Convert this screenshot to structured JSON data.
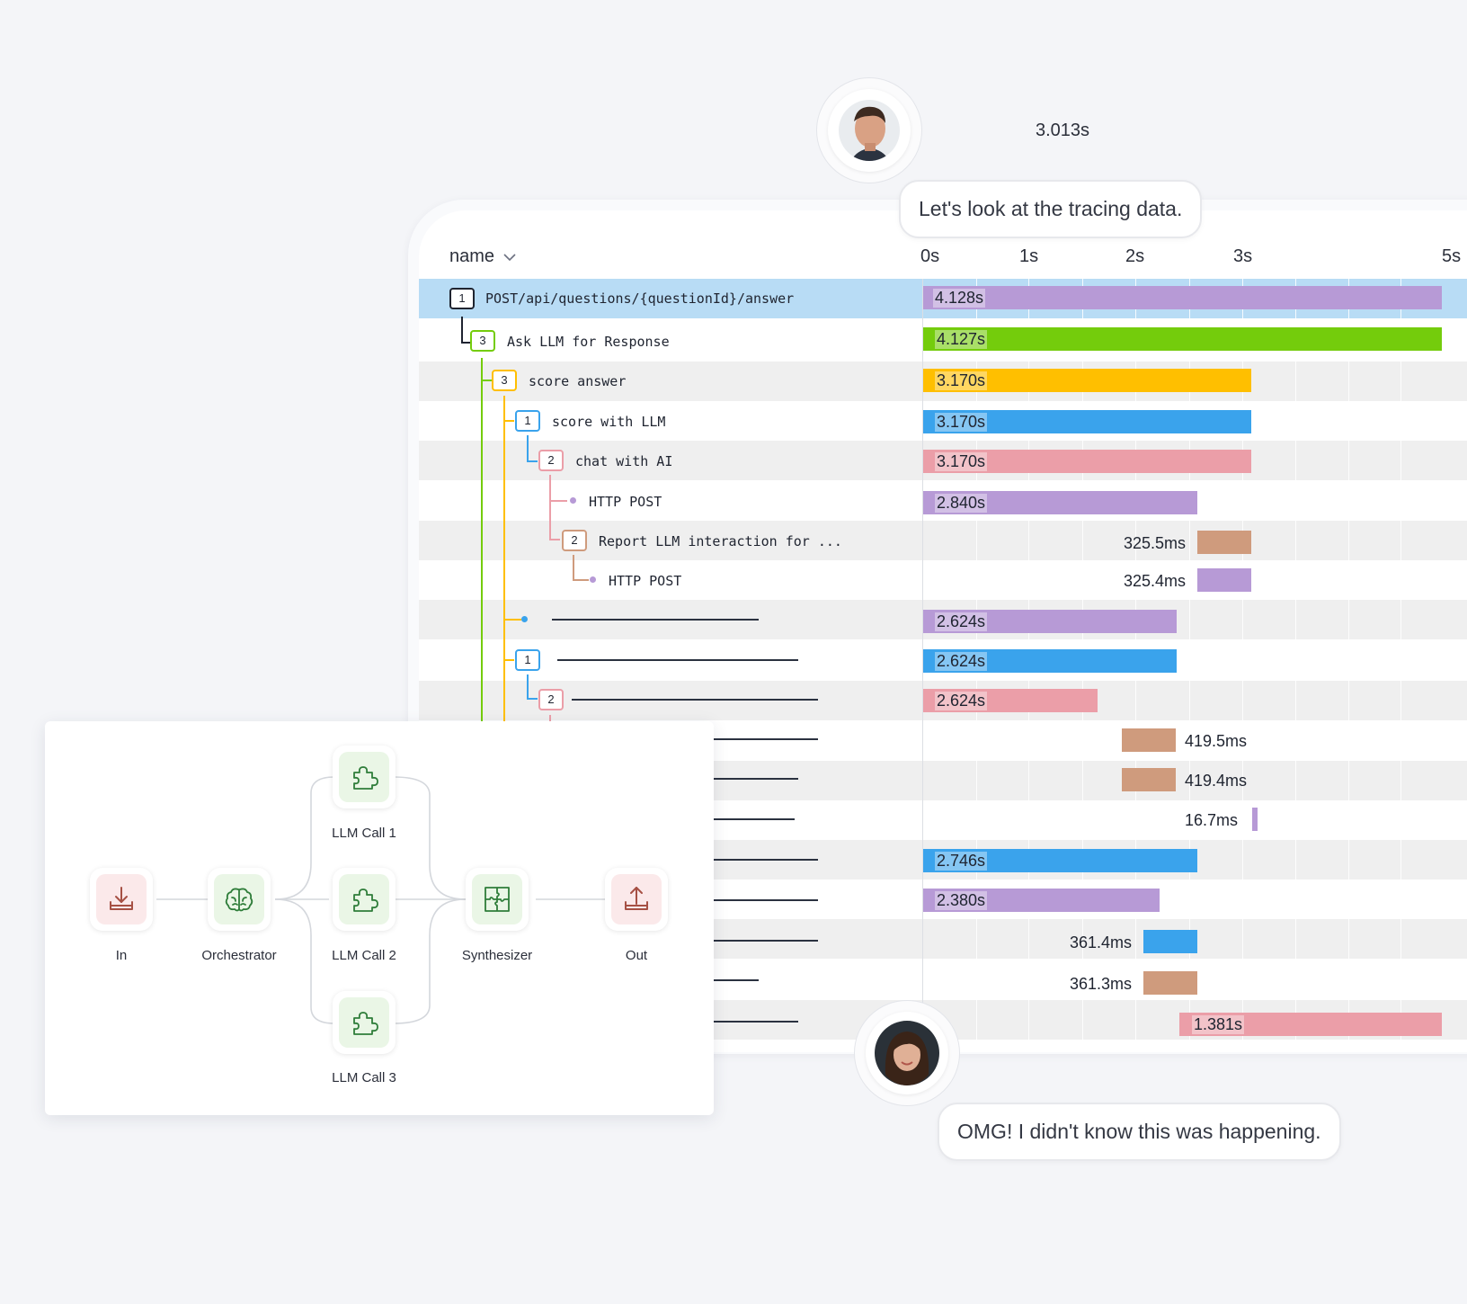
{
  "floating_duration": "3.013s",
  "bubbles": {
    "top": "Let's look at the tracing data.",
    "bottom": "OMG! I didn't know this was happening."
  },
  "trace": {
    "name_header": "name",
    "sort_icon": "chevron-down-icon",
    "ticks": [
      "0s",
      "1s",
      "2s",
      "3s",
      "5s"
    ],
    "rows": [
      {
        "badge": "1",
        "name": "POST/api/questions/{questionId}/answer",
        "duration": "4.128s",
        "color": "#b79ad6"
      },
      {
        "badge": "3",
        "name": "Ask LLM for Response",
        "duration": "4.127s",
        "color": "#74cc0c"
      },
      {
        "badge": "3",
        "name": "score answer",
        "duration": "3.170s",
        "color": "#ffbf00"
      },
      {
        "badge": "1",
        "name": "score with LLM",
        "duration": "3.170s",
        "color": "#3aa3ec"
      },
      {
        "badge": "2",
        "name": "chat with AI",
        "duration": "3.170s",
        "color": "#eb9ea8"
      },
      {
        "badge": "",
        "name": "HTTP POST",
        "duration": "2.840s",
        "color": "#b79ad6"
      },
      {
        "badge": "2",
        "name": "Report LLM interaction for ...",
        "duration": "325.5ms",
        "color": "#cf9b7d"
      },
      {
        "badge": "",
        "name": "HTTP POST",
        "duration": "325.4ms",
        "color": "#b79ad6"
      },
      {
        "badge": "",
        "name": "",
        "duration": "2.624s",
        "color": "#b79ad6"
      },
      {
        "badge": "1",
        "name": "",
        "duration": "2.624s",
        "color": "#3aa3ec"
      },
      {
        "badge": "2",
        "name": "",
        "duration": "2.624s",
        "color": "#eb9ea8"
      },
      {
        "badge": "",
        "name": "",
        "duration": "419.5ms",
        "color": "#cf9b7d"
      },
      {
        "badge": "",
        "name": "",
        "duration": "419.4ms",
        "color": "#cf9b7d"
      },
      {
        "badge": "",
        "name": "",
        "duration": "16.7ms",
        "color": "#b79ad6"
      },
      {
        "badge": "",
        "name": "",
        "duration": "2.746s",
        "color": "#3aa3ec"
      },
      {
        "badge": "",
        "name": "",
        "duration": "2.380s",
        "color": "#b79ad6"
      },
      {
        "badge": "",
        "name": "",
        "duration": "361.4ms",
        "color": "#3aa3ec"
      },
      {
        "badge": "",
        "name": "",
        "duration": "361.3ms",
        "color": "#cf9b7d"
      },
      {
        "badge": "",
        "name": "",
        "duration": "1.381s",
        "color": "#eb9ea8"
      }
    ]
  },
  "workflow": {
    "nodes": {
      "in": {
        "label": "In",
        "icon": "download-tray-icon"
      },
      "orchestrator": {
        "label": "Orchestrator",
        "icon": "brain-icon"
      },
      "llm1": {
        "label": "LLM Call 1",
        "icon": "puzzle-icon"
      },
      "llm2": {
        "label": "LLM Call 2",
        "icon": "puzzle-icon"
      },
      "llm3": {
        "label": "LLM Call 3",
        "icon": "puzzle-icon"
      },
      "synthesizer": {
        "label": "Synthesizer",
        "icon": "puzzle-grid-icon"
      },
      "out": {
        "label": "Out",
        "icon": "upload-tray-icon"
      }
    }
  }
}
